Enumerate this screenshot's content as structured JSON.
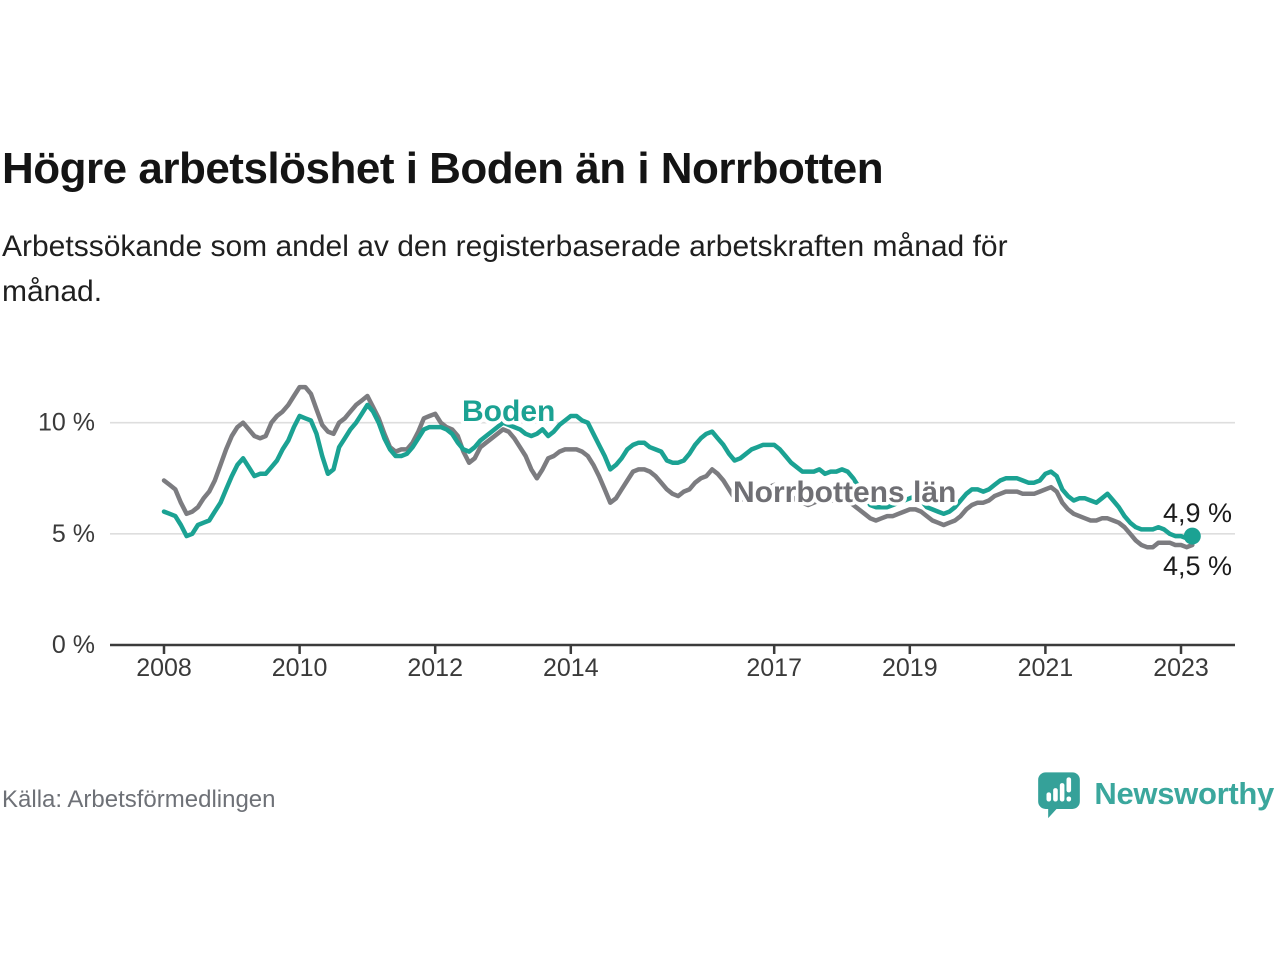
{
  "footer": {
    "brand_name": "Newsworthy",
    "logo_icon": "newsworthy-speech-bubble-barchart-icon"
  },
  "chart_data": {
    "type": "line",
    "title": "Högre arbetslöshet i Boden än i Norrbotten",
    "subtitle": "Arbetssökande som andel av den registerbaserade arbetskraften månad för månad.",
    "source": "Källa: Arbetsförmedlingen",
    "legend": "inline-labels",
    "grid": "horizontal",
    "x_axis": {
      "start_year": 2008,
      "start_month": 1,
      "frequency": "monthly",
      "end": "2023-03",
      "ticks": [
        {
          "year": 2008,
          "label": "2008"
        },
        {
          "year": 2010,
          "label": "2010"
        },
        {
          "year": 2012,
          "label": "2012"
        },
        {
          "year": 2014,
          "label": "2014"
        },
        {
          "year": 2017,
          "label": "2017"
        },
        {
          "year": 2019,
          "label": "2019"
        },
        {
          "year": 2021,
          "label": "2021"
        },
        {
          "year": 2023,
          "label": "2023"
        }
      ]
    },
    "y_axis": {
      "unit": "%",
      "range": [
        0,
        14
      ],
      "ticks": [
        {
          "value": 0,
          "label": "0 %"
        },
        {
          "value": 5,
          "label": "5 %"
        },
        {
          "value": 10,
          "label": "10 %"
        }
      ]
    },
    "series": [
      {
        "id": "norrbotten",
        "name": "Norrbottens län",
        "color": "#7C7C80",
        "label_color": "#6F6F74",
        "end_label": "4,5 %",
        "end_dot": false,
        "values": [
          7.4,
          7.2,
          7.0,
          6.4,
          5.9,
          6.0,
          6.2,
          6.6,
          6.9,
          7.4,
          8.1,
          8.8,
          9.4,
          9.8,
          10.0,
          9.7,
          9.4,
          9.3,
          9.4,
          10.0,
          10.3,
          10.5,
          10.8,
          11.2,
          11.6,
          11.6,
          11.3,
          10.6,
          9.9,
          9.6,
          9.5,
          10.0,
          10.2,
          10.5,
          10.8,
          11.0,
          11.2,
          10.7,
          10.2,
          9.5,
          8.9,
          8.7,
          8.8,
          8.8,
          9.1,
          9.6,
          10.2,
          10.3,
          10.4,
          10.0,
          9.8,
          9.7,
          9.4,
          8.7,
          8.2,
          8.4,
          8.9,
          9.1,
          9.3,
          9.5,
          9.7,
          9.6,
          9.3,
          8.9,
          8.5,
          7.9,
          7.5,
          7.9,
          8.4,
          8.5,
          8.7,
          8.8,
          8.8,
          8.8,
          8.7,
          8.5,
          8.1,
          7.6,
          7.0,
          6.4,
          6.6,
          7.0,
          7.4,
          7.8,
          7.9,
          7.9,
          7.8,
          7.6,
          7.3,
          7.0,
          6.8,
          6.7,
          6.9,
          7.0,
          7.3,
          7.5,
          7.6,
          7.9,
          7.7,
          7.4,
          7.0,
          6.6,
          6.5,
          6.7,
          6.8,
          6.9,
          7.0,
          7.1,
          7.2,
          7.1,
          6.9,
          6.7,
          6.5,
          6.4,
          6.3,
          6.4,
          6.5,
          6.4,
          6.5,
          6.5,
          6.6,
          6.5,
          6.3,
          6.1,
          5.9,
          5.7,
          5.6,
          5.7,
          5.8,
          5.8,
          5.9,
          6.0,
          6.1,
          6.1,
          6.0,
          5.8,
          5.6,
          5.5,
          5.4,
          5.5,
          5.6,
          5.8,
          6.1,
          6.3,
          6.4,
          6.4,
          6.5,
          6.7,
          6.8,
          6.9,
          6.9,
          6.9,
          6.8,
          6.8,
          6.8,
          6.9,
          7.0,
          7.1,
          6.9,
          6.4,
          6.1,
          5.9,
          5.8,
          5.7,
          5.6,
          5.6,
          5.7,
          5.7,
          5.6,
          5.5,
          5.3,
          5.0,
          4.7,
          4.5,
          4.4,
          4.4,
          4.6,
          4.6,
          4.6,
          4.5,
          4.5,
          4.4,
          4.5
        ]
      },
      {
        "id": "boden",
        "name": "Boden",
        "color": "#1BA293",
        "label_color": "#1BA293",
        "end_label": "4,9 %",
        "end_dot": true,
        "values": [
          6.0,
          5.9,
          5.8,
          5.4,
          4.9,
          5.0,
          5.4,
          5.5,
          5.6,
          6.0,
          6.4,
          7.0,
          7.6,
          8.1,
          8.4,
          8.0,
          7.6,
          7.7,
          7.7,
          8.0,
          8.3,
          8.8,
          9.2,
          9.8,
          10.3,
          10.2,
          10.1,
          9.5,
          8.5,
          7.7,
          7.9,
          8.9,
          9.3,
          9.7,
          10.0,
          10.4,
          10.8,
          10.5,
          10.0,
          9.3,
          8.8,
          8.5,
          8.5,
          8.6,
          8.9,
          9.3,
          9.7,
          9.8,
          9.8,
          9.8,
          9.7,
          9.5,
          9.1,
          8.8,
          8.7,
          8.9,
          9.2,
          9.4,
          9.6,
          9.8,
          10.0,
          9.9,
          9.8,
          9.7,
          9.5,
          9.4,
          9.5,
          9.7,
          9.4,
          9.6,
          9.9,
          10.1,
          10.3,
          10.3,
          10.1,
          10.0,
          9.5,
          9.0,
          8.5,
          7.9,
          8.1,
          8.4,
          8.8,
          9.0,
          9.1,
          9.1,
          8.9,
          8.8,
          8.7,
          8.3,
          8.2,
          8.2,
          8.3,
          8.6,
          9.0,
          9.3,
          9.5,
          9.6,
          9.3,
          9.0,
          8.6,
          8.3,
          8.4,
          8.6,
          8.8,
          8.9,
          9.0,
          9.0,
          9.0,
          8.8,
          8.5,
          8.2,
          8.0,
          7.8,
          7.8,
          7.8,
          7.9,
          7.7,
          7.8,
          7.8,
          7.9,
          7.8,
          7.5,
          7.1,
          6.7,
          6.3,
          6.2,
          6.2,
          6.2,
          6.3,
          6.4,
          6.5,
          6.6,
          6.7,
          6.5,
          6.2,
          6.1,
          6.0,
          5.9,
          6.0,
          6.2,
          6.5,
          6.8,
          7.0,
          7.0,
          6.9,
          7.0,
          7.2,
          7.4,
          7.5,
          7.5,
          7.5,
          7.4,
          7.3,
          7.3,
          7.4,
          7.7,
          7.8,
          7.6,
          7.0,
          6.7,
          6.5,
          6.6,
          6.6,
          6.5,
          6.4,
          6.6,
          6.8,
          6.5,
          6.2,
          5.8,
          5.5,
          5.3,
          5.2,
          5.2,
          5.2,
          5.3,
          5.2,
          5.0,
          4.9,
          4.9,
          4.8,
          4.9
        ]
      }
    ]
  }
}
